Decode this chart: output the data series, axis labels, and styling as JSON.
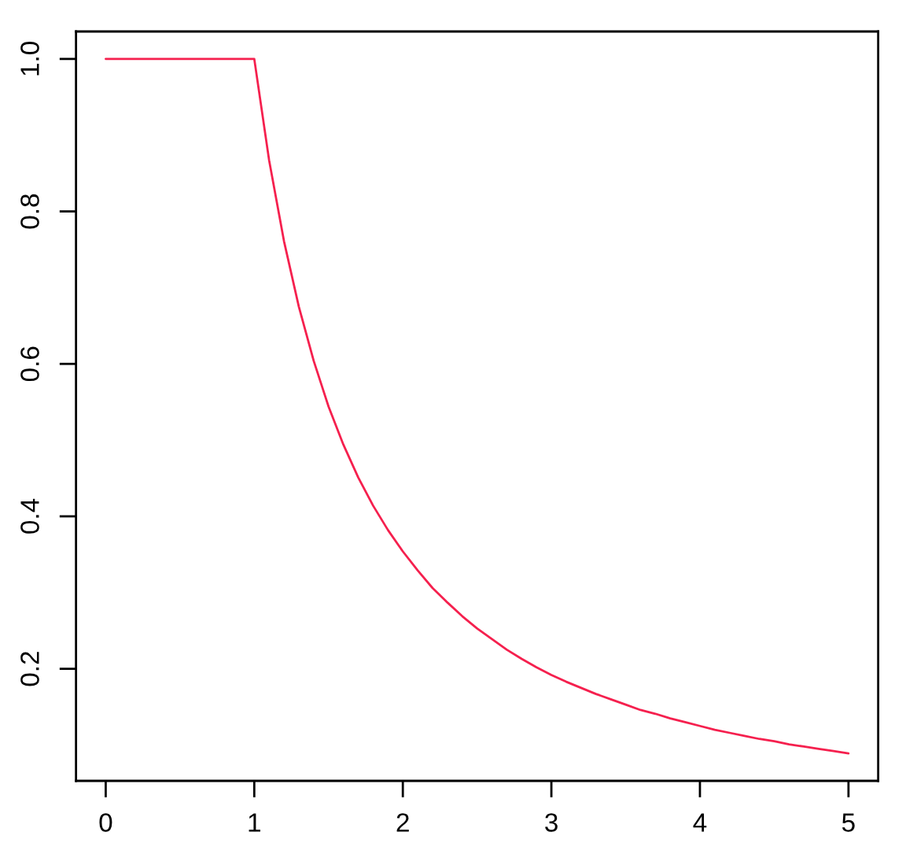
{
  "chart_data": {
    "type": "line",
    "x": [
      0,
      1,
      1.1,
      1.2,
      1.3,
      1.4,
      1.5,
      1.6,
      1.7,
      1.8,
      1.9,
      2,
      2.1,
      2.2,
      2.3,
      2.4,
      2.5,
      2.6,
      2.7,
      2.8,
      2.9,
      3,
      3.1,
      3.2,
      3.3,
      3.4,
      3.5,
      3.6,
      3.7,
      3.8,
      3.9,
      4,
      4.1,
      4.2,
      4.3,
      4.4,
      4.5,
      4.6,
      4.7,
      4.8,
      4.9,
      5
    ],
    "series": [
      {
        "color": "#f5204e",
        "values": [
          1,
          1,
          0.867,
          0.761,
          0.675,
          0.604,
          0.544,
          0.494,
          0.451,
          0.414,
          0.382,
          0.354,
          0.329,
          0.306,
          0.287,
          0.269,
          0.253,
          0.239,
          0.225,
          0.213,
          0.202,
          0.192,
          0.183,
          0.175,
          0.167,
          0.16,
          0.153,
          0.146,
          0.141,
          0.135,
          0.13,
          0.125,
          0.12,
          0.116,
          0.112,
          0.108,
          0.105,
          0.101,
          0.098,
          0.095,
          0.092,
          0.089
        ]
      }
    ],
    "xlim": [
      -0.2,
      5.2
    ],
    "ylim": [
      0.053,
      1.036
    ],
    "xticks": [
      0,
      1,
      2,
      3,
      4,
      5
    ],
    "yticks": [
      0.2,
      0.4,
      0.6,
      0.8,
      {
        "value": 1,
        "label": "1.0"
      }
    ],
    "line_style": "solid"
  }
}
